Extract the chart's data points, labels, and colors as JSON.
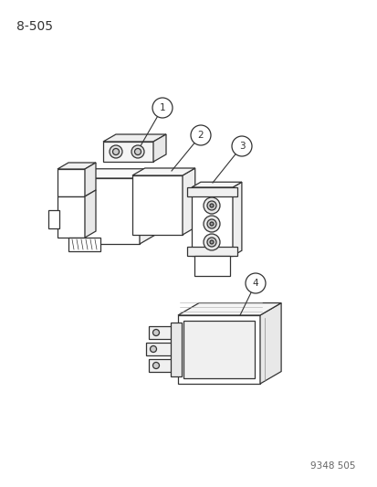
{
  "title": "8–505",
  "watermark": "9348 505",
  "bg_color": "#ffffff",
  "line_color": "#333333",
  "title_fontsize": 10,
  "watermark_fontsize": 7.5
}
